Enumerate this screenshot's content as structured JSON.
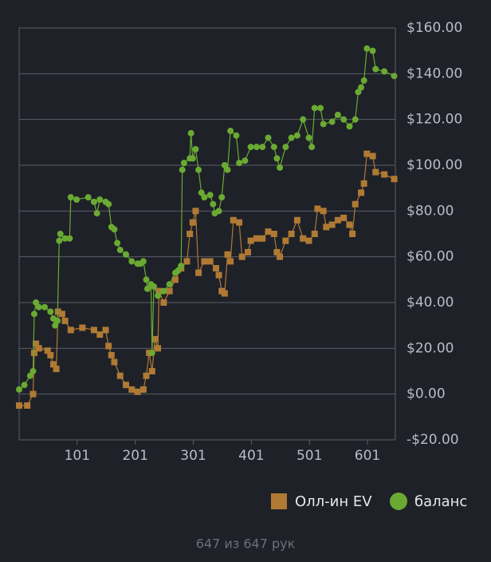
{
  "chart_data": {
    "type": "line",
    "xlim": [
      1,
      649
    ],
    "xticks": [
      101,
      201,
      301,
      401,
      501,
      601
    ],
    "ylim": [
      -20,
      160
    ],
    "yticks": [
      {
        "value": -20,
        "label": "-$20.00"
      },
      {
        "value": 0,
        "label": "$0.00"
      },
      {
        "value": 20,
        "label": "$20.00"
      },
      {
        "value": 40,
        "label": "$40.00"
      },
      {
        "value": 60,
        "label": "$60.00"
      },
      {
        "value": 80,
        "label": "$80.00"
      },
      {
        "value": 100,
        "label": "$100.00"
      },
      {
        "value": 120,
        "label": "$120.00"
      },
      {
        "value": 140,
        "label": "$140.00"
      },
      {
        "value": 160,
        "label": "$160.00"
      }
    ],
    "grid": true,
    "series": [
      {
        "name": "Олл-ин EV",
        "color": "#b07a34",
        "marker": "square",
        "x": [
          1,
          15,
          25,
          27,
          30,
          35,
          50,
          55,
          60,
          65,
          68,
          75,
          80,
          90,
          110,
          130,
          140,
          150,
          155,
          160,
          165,
          175,
          185,
          195,
          205,
          215,
          220,
          225,
          230,
          235,
          240,
          242,
          250,
          260,
          270,
          280,
          290,
          295,
          300,
          305,
          310,
          320,
          330,
          340,
          345,
          350,
          355,
          360,
          365,
          370,
          380,
          385,
          395,
          400,
          410,
          420,
          430,
          440,
          445,
          450,
          460,
          470,
          480,
          490,
          500,
          510,
          515,
          525,
          530,
          540,
          550,
          560,
          570,
          575,
          580,
          590,
          595,
          600,
          610,
          615,
          630,
          647
        ],
        "values": [
          -5,
          -5,
          0,
          18,
          22,
          20,
          19,
          17,
          13,
          11,
          36,
          35,
          32,
          28,
          29,
          28,
          26,
          28,
          21,
          17,
          14,
          8,
          4,
          2,
          1,
          2,
          8,
          18,
          10,
          24,
          20,
          45,
          40,
          45,
          50,
          55,
          58,
          70,
          75,
          80,
          53,
          58,
          58,
          55,
          52,
          45,
          44,
          61,
          58,
          76,
          75,
          60,
          62,
          67,
          68,
          68,
          71,
          70,
          62,
          60,
          67,
          70,
          76,
          68,
          67,
          70,
          81,
          80,
          73,
          74,
          76,
          77,
          74,
          70,
          83,
          88,
          92,
          105,
          104,
          97,
          96,
          94
        ]
      },
      {
        "name": "баланс",
        "color": "#6aaa32",
        "marker": "circle",
        "x": [
          1,
          10,
          20,
          25,
          27,
          30,
          35,
          45,
          55,
          60,
          63,
          67,
          70,
          72,
          80,
          88,
          90,
          100,
          120,
          130,
          135,
          140,
          150,
          155,
          160,
          165,
          170,
          175,
          185,
          195,
          205,
          210,
          215,
          220,
          222,
          228,
          230,
          233,
          240,
          250,
          260,
          270,
          275,
          280,
          282,
          285,
          295,
          297,
          300,
          305,
          310,
          315,
          320,
          330,
          335,
          338,
          345,
          350,
          355,
          360,
          365,
          375,
          380,
          390,
          400,
          410,
          420,
          430,
          440,
          445,
          450,
          460,
          470,
          480,
          490,
          500,
          505,
          510,
          520,
          525,
          540,
          550,
          560,
          570,
          580,
          585,
          590,
          595,
          600,
          610,
          615,
          630,
          647
        ],
        "values": [
          2,
          4,
          8,
          10,
          35,
          40,
          38,
          38,
          36,
          33,
          30,
          32,
          67,
          70,
          68,
          68,
          86,
          85,
          86,
          84,
          79,
          85,
          84,
          83,
          73,
          72,
          66,
          63,
          61,
          58,
          57,
          57,
          58,
          50,
          46,
          48,
          18,
          47,
          43,
          45,
          48,
          53,
          54,
          56,
          98,
          101,
          103,
          114,
          103,
          107,
          98,
          88,
          86,
          87,
          83,
          79,
          80,
          86,
          100,
          98,
          115,
          113,
          101,
          102,
          108,
          108,
          108,
          112,
          108,
          103,
          99,
          108,
          112,
          113,
          120,
          112,
          108,
          125,
          125,
          118,
          119,
          122,
          120,
          117,
          120,
          132,
          134,
          137,
          151,
          150,
          142,
          141,
          139
        ]
      }
    ],
    "legend": "bottom-right",
    "footer": "647 из 647 рук"
  }
}
